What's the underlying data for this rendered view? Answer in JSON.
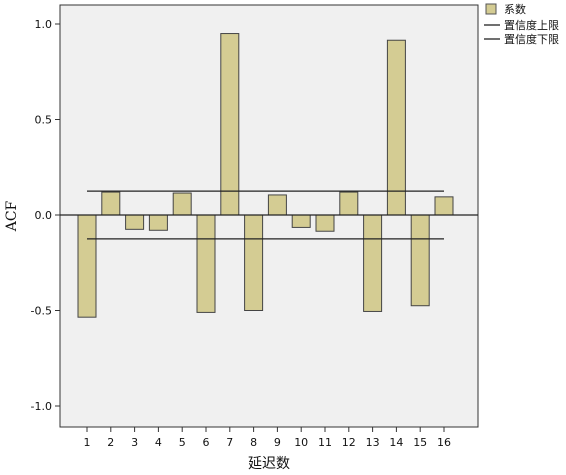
{
  "chart_data": {
    "type": "bar",
    "xlabel": "延迟数",
    "ylabel": "ACF",
    "ylim": [
      -1.1,
      1.1
    ],
    "yticks": [
      "1.0",
      "0.5",
      "0.0",
      "-0.5",
      "-1.0"
    ],
    "ytick_values": [
      1.0,
      0.5,
      0.0,
      -0.5,
      -1.0
    ],
    "categories": [
      "1",
      "2",
      "3",
      "4",
      "5",
      "6",
      "7",
      "8",
      "9",
      "10",
      "11",
      "12",
      "13",
      "14",
      "15",
      "16"
    ],
    "series": [
      {
        "name": "系数",
        "color": "#d4cc93",
        "values": [
          -0.535,
          0.12,
          -0.075,
          -0.08,
          0.115,
          -0.51,
          0.95,
          -0.5,
          0.105,
          -0.065,
          -0.085,
          0.12,
          -0.505,
          0.915,
          -0.475,
          0.095
        ]
      }
    ],
    "confidence_upper": {
      "name": "置信度上限",
      "value": 0.125
    },
    "confidence_lower": {
      "name": "置信度下限",
      "value": -0.125
    },
    "legend_position": "top-right",
    "plot_background": "#f0f0f0",
    "grid": false
  }
}
